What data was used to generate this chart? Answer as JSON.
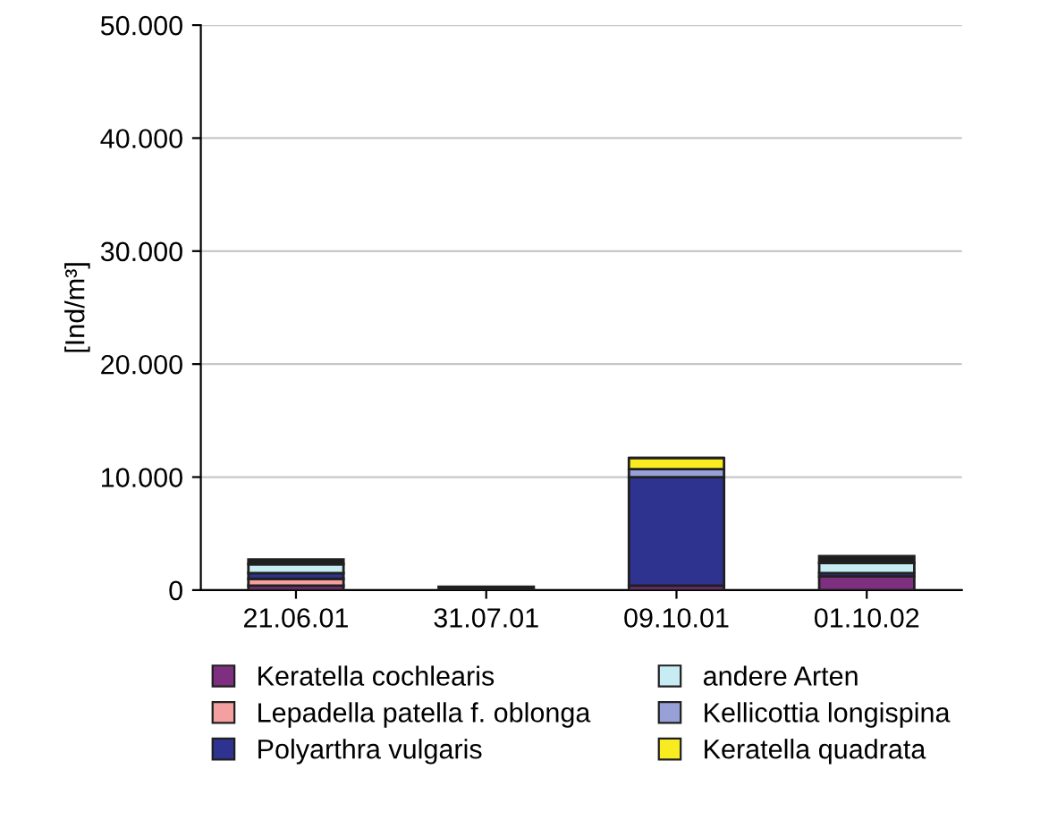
{
  "chart_data": {
    "type": "bar",
    "stacked": true,
    "ylabel": "[Ind/m³]",
    "categories": [
      "21.06.01",
      "31.07.01",
      "09.10.01",
      "01.10.02"
    ],
    "series": [
      {
        "name": "Keratella cochlearis",
        "color": "#7f2f7f",
        "values": [
          400,
          0,
          400,
          1200
        ]
      },
      {
        "name": "Lepadella patella f. oblonga",
        "color": "#f4a0a0",
        "values": [
          600,
          0,
          0,
          0
        ]
      },
      {
        "name": "Polyarthra vulgaris",
        "color": "#2e3390",
        "values": [
          500,
          0,
          9600,
          300
        ]
      },
      {
        "name": "andere Arten",
        "color": "#c8ecf4",
        "values": [
          800,
          0,
          0,
          900
        ]
      },
      {
        "name": "Kellicottia longispina",
        "color": "#98a0d8",
        "values": [
          0,
          0,
          700,
          0
        ]
      },
      {
        "name": "Keratella quadrata",
        "color": "#f8ec20",
        "values": [
          0,
          0,
          1000,
          0
        ]
      },
      {
        "color": "#1e1e1e",
        "values": [
          400,
          300,
          0,
          600
        ]
      }
    ],
    "ylim": [
      0,
      50000
    ],
    "yticks": [
      {
        "value": 0,
        "label": "0"
      },
      {
        "value": 10000,
        "label": "10.000"
      },
      {
        "value": 20000,
        "label": "20.000"
      },
      {
        "value": 30000,
        "label": "30.000"
      },
      {
        "value": 40000,
        "label": "40.000"
      },
      {
        "value": 50000,
        "label": "50.000"
      }
    ],
    "grid": "y",
    "legend": "bottom"
  }
}
